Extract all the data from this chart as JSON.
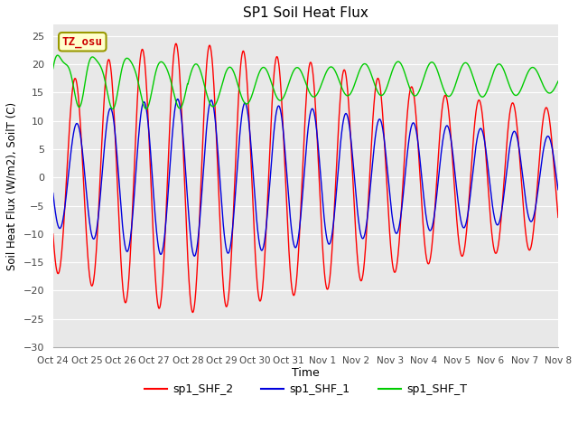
{
  "title": "SP1 Soil Heat Flux",
  "xlabel": "Time",
  "ylabel": "Soil Heat Flux (W/m2), SoilT (C)",
  "ylim": [
    -30,
    27
  ],
  "yticks": [
    -30,
    -25,
    -20,
    -15,
    -10,
    -5,
    0,
    5,
    10,
    15,
    20,
    25
  ],
  "xtick_labels": [
    "Oct 24",
    "Oct 25",
    "Oct 26",
    "Oct 27",
    "Oct 28",
    "Oct 29",
    "Oct 30",
    "Oct 31",
    "Nov 1",
    "Nov 2",
    "Nov 3",
    "Nov 4",
    "Nov 5",
    "Nov 6",
    "Nov 7",
    "Nov 8"
  ],
  "color_shf2": "#ff0000",
  "color_shf1": "#0000dd",
  "color_shft": "#00cc00",
  "bg_color": "#ffffff",
  "plot_bg": "#e8e8e8",
  "grid_color": "#ffffff",
  "tz_label": "TZ_osu",
  "tz_bg": "#ffffcc",
  "tz_border": "#999900",
  "legend_entries": [
    "sp1_SHF_2",
    "sp1_SHF_1",
    "sp1_SHF_T"
  ]
}
